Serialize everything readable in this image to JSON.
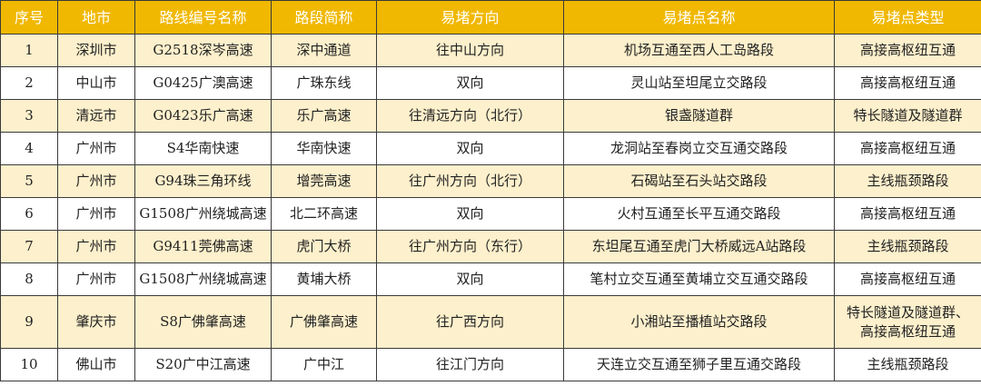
{
  "colors": {
    "header": "#f0b800",
    "stripe": "#fdf0cc"
  },
  "headers": [
    "序号",
    "地市",
    "路线编号名称",
    "路段简称",
    "易堵方向",
    "易堵点名称",
    "易堵点类型"
  ],
  "rows": [
    [
      "1",
      "深圳市",
      "G2518深岑高速",
      "深中通道",
      "往中山方向",
      "机场互通至西人工岛路段",
      "高接高枢纽互通"
    ],
    [
      "2",
      "中山市",
      "G0425广澳高速",
      "广珠东线",
      "双向",
      "灵山站至坦尾立交路段",
      "高接高枢纽互通"
    ],
    [
      "3",
      "清远市",
      "G0423乐广高速",
      "乐广高速",
      "往清远方向（北行）",
      "银盏隧道群",
      "特长隧道及隧道群"
    ],
    [
      "4",
      "广州市",
      "S4华南快速",
      "华南快速",
      "双向",
      "龙洞站至春岗立交互通交路段",
      "高接高枢纽互通"
    ],
    [
      "5",
      "广州市",
      "G94珠三角环线",
      "增莞高速",
      "往广州方向（北行）",
      "石碣站至石头站交路段",
      "主线瓶颈路段"
    ],
    [
      "6",
      "广州市",
      "G1508广州绕城高速",
      "北二环高速",
      "双向",
      "火村互通至长平互通交路段",
      "高接高枢纽互通"
    ],
    [
      "7",
      "广州市",
      "G9411莞佛高速",
      "虎门大桥",
      "往广州方向（东行）",
      "东坦尾互通至虎门大桥威远A站路段",
      "主线瓶颈路段"
    ],
    [
      "8",
      "广州市",
      "G1508广州绕城高速",
      "黄埔大桥",
      "双向",
      "笔村立交互通至黄埔立交互通交路段",
      "高接高枢纽互通"
    ],
    [
      "9",
      "肇庆市",
      "S8广佛肇高速",
      "广佛肇高速",
      "往广西方向",
      "小湘站至播植站交路段",
      "特长隧道及隧道群、高接高枢纽互通"
    ],
    [
      "10",
      "佛山市",
      "S20广中江高速",
      "广中江",
      "往江门方向",
      "天连立交互通至狮子里互通交路段",
      "主线瓶颈路段"
    ]
  ]
}
